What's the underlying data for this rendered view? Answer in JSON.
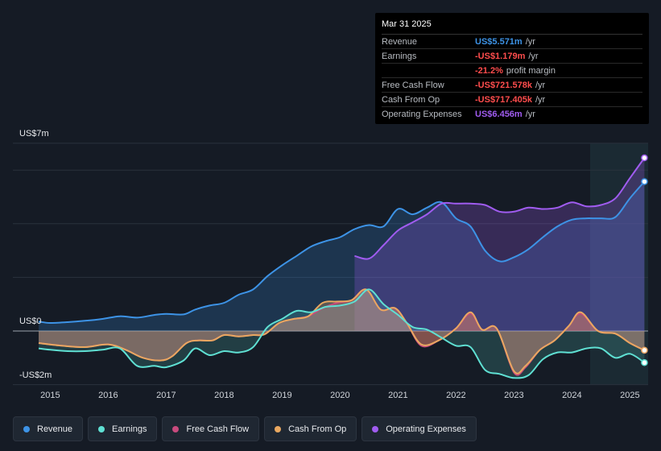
{
  "tooltip": {
    "date": "Mar 31 2025",
    "rows": [
      {
        "label": "Revenue",
        "value": "US$5.571m",
        "unit": "/yr",
        "color": "#3d93e6"
      },
      {
        "label": "Earnings",
        "value": "-US$1.179m",
        "unit": "/yr",
        "color": "#ff4d4d"
      },
      {
        "label": "",
        "value": "-21.2%",
        "unit": "profit margin",
        "color": "#ff4d4d"
      },
      {
        "label": "Free Cash Flow",
        "value": "-US$721.578k",
        "unit": "/yr",
        "color": "#ff4d4d"
      },
      {
        "label": "Cash From Op",
        "value": "-US$717.405k",
        "unit": "/yr",
        "color": "#ff4d4d"
      },
      {
        "label": "Operating Expenses",
        "value": "US$6.456m",
        "unit": "/yr",
        "color": "#a05cf0"
      }
    ]
  },
  "axis": {
    "top": "US$7m",
    "zero": "US$0",
    "bottom": "-US$2m"
  },
  "legend": [
    {
      "label": "Revenue",
      "color": "#3d93e6"
    },
    {
      "label": "Earnings",
      "color": "#5fe0d3"
    },
    {
      "label": "Free Cash Flow",
      "color": "#c84a7d"
    },
    {
      "label": "Cash From Op",
      "color": "#e9a860"
    },
    {
      "label": "Operating Expenses",
      "color": "#a05cf0"
    }
  ],
  "chart_data": {
    "type": "line",
    "title": "",
    "xlabel": "",
    "ylabel": "",
    "ylim": [
      -2,
      7
    ],
    "x_ticks": [
      "2015",
      "2016",
      "2017",
      "2018",
      "2019",
      "2020",
      "2021",
      "2022",
      "2023",
      "2024",
      "2025"
    ],
    "x_range": [
      2014.8,
      2025.25
    ],
    "series": [
      {
        "name": "Revenue",
        "color": "#3d93e6",
        "x": [
          2014.8,
          2015.0,
          2015.3,
          2015.6,
          2015.9,
          2016.2,
          2016.5,
          2016.8,
          2017.0,
          2017.3,
          2017.5,
          2017.75,
          2018.0,
          2018.25,
          2018.5,
          2018.75,
          2019.0,
          2019.25,
          2019.5,
          2019.75,
          2020.0,
          2020.25,
          2020.5,
          2020.75,
          2021.0,
          2021.25,
          2021.5,
          2021.75,
          2022.0,
          2022.25,
          2022.5,
          2022.75,
          2023.0,
          2023.25,
          2023.5,
          2023.75,
          2024.0,
          2024.25,
          2024.5,
          2024.75,
          2025.0,
          2025.25
        ],
        "y": [
          0.35,
          0.3,
          0.33,
          0.38,
          0.45,
          0.55,
          0.5,
          0.6,
          0.64,
          0.62,
          0.8,
          0.95,
          1.05,
          1.35,
          1.55,
          2.05,
          2.45,
          2.8,
          3.15,
          3.35,
          3.5,
          3.8,
          3.95,
          3.9,
          4.55,
          4.35,
          4.6,
          4.8,
          4.2,
          3.9,
          3.0,
          2.6,
          2.75,
          3.05,
          3.5,
          3.9,
          4.15,
          4.2,
          4.2,
          4.25,
          4.95,
          5.571
        ]
      },
      {
        "name": "Earnings",
        "color": "#5fe0d3",
        "x": [
          2014.8,
          2015.0,
          2015.3,
          2015.6,
          2015.9,
          2016.2,
          2016.5,
          2016.8,
          2017.0,
          2017.3,
          2017.5,
          2017.75,
          2018.0,
          2018.25,
          2018.5,
          2018.75,
          2019.0,
          2019.25,
          2019.5,
          2019.75,
          2020.0,
          2020.25,
          2020.5,
          2020.75,
          2021.0,
          2021.25,
          2021.5,
          2021.75,
          2022.0,
          2022.25,
          2022.5,
          2022.75,
          2023.0,
          2023.25,
          2023.5,
          2023.75,
          2024.0,
          2024.25,
          2024.5,
          2024.75,
          2025.0,
          2025.25
        ],
        "y": [
          -0.65,
          -0.7,
          -0.75,
          -0.75,
          -0.7,
          -0.65,
          -1.3,
          -1.3,
          -1.35,
          -1.1,
          -0.65,
          -0.9,
          -0.75,
          -0.8,
          -0.6,
          0.15,
          0.45,
          0.75,
          0.7,
          0.9,
          0.95,
          1.1,
          1.55,
          1.0,
          0.6,
          0.15,
          0.05,
          -0.25,
          -0.55,
          -0.6,
          -1.45,
          -1.6,
          -1.75,
          -1.65,
          -1.05,
          -0.8,
          -0.8,
          -0.65,
          -0.65,
          -1.0,
          -0.85,
          -1.179
        ]
      },
      {
        "name": "Free Cash Flow",
        "color": "#c84a7d",
        "x": [
          2014.8,
          2015.2,
          2015.6,
          2016.0,
          2016.3,
          2016.6,
          2016.9,
          2017.1,
          2017.35,
          2017.55,
          2017.8,
          2018.0,
          2018.25,
          2018.5,
          2018.7,
          2018.95,
          2019.2,
          2019.45,
          2019.7,
          2019.95,
          2020.2,
          2020.45,
          2020.7,
          2020.95,
          2021.15,
          2021.4,
          2021.7,
          2022.0,
          2022.25,
          2022.45,
          2022.7,
          2023.0,
          2023.2,
          2023.45,
          2023.7,
          2023.95,
          2024.15,
          2024.45,
          2024.75,
          2025.0,
          2025.25
        ],
        "y": [
          -0.45,
          -0.55,
          -0.6,
          -0.5,
          -0.7,
          -1.0,
          -1.1,
          -0.95,
          -0.45,
          -0.35,
          -0.35,
          -0.15,
          -0.2,
          -0.15,
          -0.12,
          0.3,
          0.45,
          0.55,
          0.85,
          1.05,
          1.15,
          1.55,
          0.8,
          0.85,
          0.3,
          -0.55,
          -0.35,
          0.1,
          0.65,
          0.05,
          0.1,
          -1.55,
          -1.35,
          -0.7,
          -0.35,
          0.2,
          0.65,
          0.0,
          -0.1,
          -0.45,
          -0.72
        ]
      },
      {
        "name": "Cash From Op",
        "color": "#e9a860",
        "x": [
          2014.8,
          2015.2,
          2015.6,
          2016.0,
          2016.3,
          2016.6,
          2016.9,
          2017.1,
          2017.35,
          2017.55,
          2017.8,
          2018.0,
          2018.25,
          2018.5,
          2018.7,
          2018.95,
          2019.2,
          2019.45,
          2019.7,
          2019.95,
          2020.2,
          2020.45,
          2020.7,
          2020.95,
          2021.15,
          2021.4,
          2021.7,
          2022.0,
          2022.25,
          2022.45,
          2022.7,
          2023.0,
          2023.2,
          2023.45,
          2023.7,
          2023.95,
          2024.15,
          2024.45,
          2024.75,
          2025.0,
          2025.25
        ],
        "y": [
          -0.45,
          -0.55,
          -0.6,
          -0.5,
          -0.7,
          -1.0,
          -1.1,
          -0.95,
          -0.45,
          -0.35,
          -0.35,
          -0.15,
          -0.2,
          -0.15,
          -0.12,
          0.3,
          0.45,
          0.55,
          1.05,
          1.1,
          1.15,
          1.55,
          0.8,
          0.85,
          0.3,
          -0.5,
          -0.35,
          0.1,
          0.7,
          0.05,
          0.1,
          -1.5,
          -1.3,
          -0.7,
          -0.35,
          0.2,
          0.7,
          0.0,
          -0.1,
          -0.45,
          -0.717
        ]
      },
      {
        "name": "Operating Expenses",
        "color": "#a05cf0",
        "x": [
          2020.25,
          2020.5,
          2020.75,
          2021.0,
          2021.25,
          2021.5,
          2021.75,
          2022.0,
          2022.25,
          2022.5,
          2022.75,
          2023.0,
          2023.25,
          2023.5,
          2023.75,
          2024.0,
          2024.25,
          2024.5,
          2024.75,
          2025.0,
          2025.25
        ],
        "y": [
          2.8,
          2.7,
          3.2,
          3.75,
          4.05,
          4.35,
          4.75,
          4.75,
          4.75,
          4.7,
          4.45,
          4.45,
          4.6,
          4.55,
          4.6,
          4.8,
          4.65,
          4.7,
          4.95,
          5.7,
          6.456
        ]
      }
    ]
  }
}
